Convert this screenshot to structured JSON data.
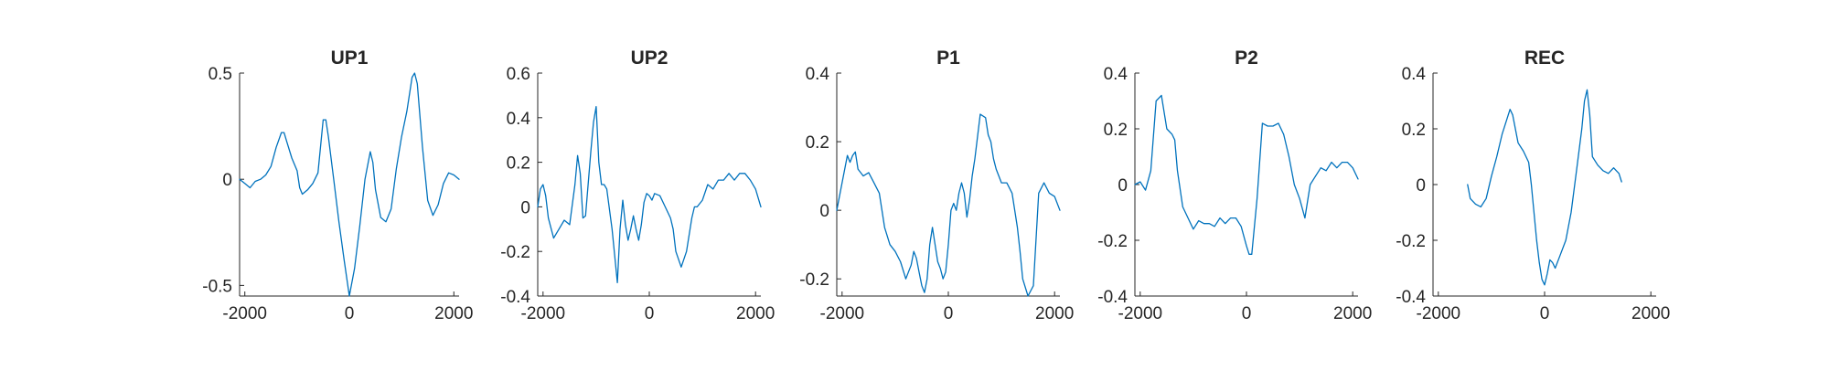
{
  "figure": {
    "background": "#ffffff",
    "line_color": "#0072BD"
  },
  "chart_data": [
    {
      "type": "line",
      "title": "UP1",
      "xlabel": "",
      "ylabel": "",
      "xlim": [
        -2100,
        2100
      ],
      "ylim": [
        -0.55,
        0.5
      ],
      "xticks": [
        -2000,
        0,
        2000
      ],
      "xticklabels": [
        "-2000",
        "0",
        "2000"
      ],
      "yticks": [
        -0.5,
        0,
        0.5
      ],
      "yticklabels": [
        "-0.5",
        "0",
        "0.5"
      ],
      "grid": false,
      "x": [
        -2100,
        -2000,
        -1900,
        -1800,
        -1700,
        -1600,
        -1500,
        -1400,
        -1300,
        -1250,
        -1200,
        -1100,
        -1000,
        -950,
        -900,
        -800,
        -700,
        -600,
        -500,
        -450,
        -400,
        -300,
        -200,
        -100,
        0,
        100,
        200,
        300,
        400,
        450,
        500,
        600,
        700,
        800,
        900,
        1000,
        1100,
        1200,
        1250,
        1300,
        1400,
        1500,
        1600,
        1700,
        1800,
        1900,
        2000,
        2100
      ],
      "series": [
        {
          "values": [
            0.0,
            -0.02,
            -0.04,
            -0.01,
            0.0,
            0.02,
            0.06,
            0.15,
            0.22,
            0.22,
            0.18,
            0.1,
            0.04,
            -0.04,
            -0.07,
            -0.05,
            -0.02,
            0.03,
            0.28,
            0.28,
            0.2,
            0.0,
            -0.2,
            -0.38,
            -0.55,
            -0.42,
            -0.22,
            0.0,
            0.13,
            0.08,
            -0.05,
            -0.18,
            -0.2,
            -0.14,
            0.05,
            0.2,
            0.32,
            0.48,
            0.5,
            0.45,
            0.15,
            -0.1,
            -0.17,
            -0.12,
            -0.02,
            0.03,
            0.02,
            0.0
          ]
        }
      ]
    },
    {
      "type": "line",
      "title": "UP2",
      "xlabel": "",
      "ylabel": "",
      "xlim": [
        -2100,
        2100
      ],
      "ylim": [
        -0.4,
        0.6
      ],
      "xticks": [
        -2000,
        0,
        2000
      ],
      "xticklabels": [
        "-2000",
        "0",
        "2000"
      ],
      "yticks": [
        -0.4,
        -0.2,
        0,
        0.2,
        0.4,
        0.6
      ],
      "yticklabels": [
        "-0.4",
        "-0.2",
        "0",
        "0.2",
        "0.4",
        "0.6"
      ],
      "grid": false,
      "x": [
        -2100,
        -2050,
        -2000,
        -1950,
        -1900,
        -1800,
        -1700,
        -1600,
        -1500,
        -1400,
        -1350,
        -1300,
        -1250,
        -1200,
        -1100,
        -1050,
        -1000,
        -950,
        -900,
        -850,
        -800,
        -700,
        -600,
        -550,
        -500,
        -450,
        -400,
        -350,
        -300,
        -250,
        -200,
        -150,
        -100,
        -50,
        0,
        50,
        100,
        200,
        300,
        400,
        450,
        500,
        600,
        700,
        800,
        850,
        900,
        1000,
        1100,
        1200,
        1300,
        1400,
        1500,
        1600,
        1700,
        1800,
        1900,
        2000,
        2100
      ],
      "series": [
        {
          "values": [
            0.0,
            0.08,
            0.1,
            0.05,
            -0.05,
            -0.14,
            -0.1,
            -0.06,
            -0.08,
            0.1,
            0.23,
            0.15,
            -0.05,
            -0.04,
            0.25,
            0.38,
            0.45,
            0.2,
            0.1,
            0.1,
            0.08,
            -0.1,
            -0.34,
            -0.1,
            0.03,
            -0.08,
            -0.15,
            -0.1,
            -0.04,
            -0.1,
            -0.15,
            -0.08,
            0.02,
            0.06,
            0.05,
            0.03,
            0.06,
            0.05,
            0.0,
            -0.05,
            -0.1,
            -0.2,
            -0.27,
            -0.2,
            -0.05,
            0.0,
            0.0,
            0.03,
            0.1,
            0.08,
            0.12,
            0.12,
            0.15,
            0.12,
            0.15,
            0.15,
            0.12,
            0.08,
            0.0
          ]
        }
      ]
    },
    {
      "type": "line",
      "title": "P1",
      "xlabel": "",
      "ylabel": "",
      "xlim": [
        -2100,
        2100
      ],
      "ylim": [
        -0.25,
        0.4
      ],
      "xticks": [
        -2000,
        0,
        2000
      ],
      "xticklabels": [
        "-2000",
        "0",
        "2000"
      ],
      "yticks": [
        -0.2,
        0,
        0.2,
        0.4
      ],
      "yticklabels": [
        "-0.2",
        "0",
        "0.2",
        "0.4"
      ],
      "grid": false,
      "x": [
        -2100,
        -2000,
        -1950,
        -1900,
        -1850,
        -1800,
        -1750,
        -1700,
        -1600,
        -1500,
        -1400,
        -1300,
        -1200,
        -1100,
        -1000,
        -900,
        -800,
        -700,
        -650,
        -600,
        -550,
        -500,
        -450,
        -400,
        -350,
        -300,
        -250,
        -200,
        -150,
        -100,
        -50,
        0,
        50,
        100,
        150,
        200,
        250,
        300,
        350,
        400,
        450,
        500,
        600,
        700,
        750,
        800,
        850,
        900,
        1000,
        1100,
        1200,
        1300,
        1350,
        1400,
        1500,
        1600,
        1700,
        1800,
        1900,
        2000,
        2100
      ],
      "series": [
        {
          "values": [
            0.0,
            0.08,
            0.12,
            0.16,
            0.14,
            0.16,
            0.17,
            0.12,
            0.1,
            0.11,
            0.08,
            0.05,
            -0.05,
            -0.1,
            -0.12,
            -0.15,
            -0.2,
            -0.16,
            -0.12,
            -0.14,
            -0.18,
            -0.22,
            -0.24,
            -0.2,
            -0.1,
            -0.05,
            -0.1,
            -0.15,
            -0.17,
            -0.2,
            -0.18,
            -0.1,
            0.0,
            0.02,
            0.0,
            0.05,
            0.08,
            0.05,
            -0.02,
            0.03,
            0.1,
            0.15,
            0.28,
            0.27,
            0.22,
            0.2,
            0.15,
            0.12,
            0.08,
            0.08,
            0.05,
            -0.05,
            -0.12,
            -0.2,
            -0.25,
            -0.22,
            0.05,
            0.08,
            0.05,
            0.04,
            0.0
          ]
        }
      ]
    },
    {
      "type": "line",
      "title": "P2",
      "xlabel": "",
      "ylabel": "",
      "xlim": [
        -2100,
        2100
      ],
      "ylim": [
        -0.4,
        0.4
      ],
      "xticks": [
        -2000,
        0,
        2000
      ],
      "xticklabels": [
        "-2000",
        "0",
        "2000"
      ],
      "yticks": [
        -0.4,
        -0.2,
        0,
        0.2,
        0.4
      ],
      "yticklabels": [
        "-0.4",
        "-0.2",
        "0",
        "0.2",
        "0.4"
      ],
      "grid": false,
      "x": [
        -2100,
        -2000,
        -1900,
        -1800,
        -1700,
        -1600,
        -1500,
        -1400,
        -1350,
        -1300,
        -1200,
        -1100,
        -1000,
        -900,
        -800,
        -700,
        -600,
        -500,
        -400,
        -300,
        -200,
        -100,
        0,
        50,
        100,
        200,
        300,
        400,
        500,
        600,
        700,
        800,
        900,
        1000,
        1100,
        1200,
        1300,
        1400,
        1500,
        1600,
        1700,
        1800,
        1900,
        2000,
        2100
      ],
      "series": [
        {
          "values": [
            0.0,
            0.01,
            -0.02,
            0.05,
            0.3,
            0.32,
            0.2,
            0.18,
            0.16,
            0.05,
            -0.08,
            -0.12,
            -0.16,
            -0.13,
            -0.14,
            -0.14,
            -0.15,
            -0.12,
            -0.14,
            -0.12,
            -0.12,
            -0.15,
            -0.22,
            -0.25,
            -0.25,
            -0.05,
            0.22,
            0.21,
            0.21,
            0.22,
            0.18,
            0.1,
            0.0,
            -0.05,
            -0.12,
            0.0,
            0.03,
            0.06,
            0.05,
            0.08,
            0.06,
            0.08,
            0.08,
            0.06,
            0.02
          ]
        }
      ]
    },
    {
      "type": "line",
      "title": "REC",
      "xlabel": "",
      "ylabel": "",
      "xlim": [
        -2100,
        2100
      ],
      "ylim": [
        -0.4,
        0.4
      ],
      "xticks": [
        -2000,
        0,
        2000
      ],
      "xticklabels": [
        "-2000",
        "0",
        "2000"
      ],
      "yticks": [
        -0.4,
        -0.2,
        0,
        0.2,
        0.4
      ],
      "yticklabels": [
        "-0.4",
        "-0.2",
        "0",
        "0.2",
        "0.4"
      ],
      "grid": false,
      "x": [
        -1450,
        -1400,
        -1300,
        -1200,
        -1100,
        -1000,
        -900,
        -800,
        -700,
        -650,
        -600,
        -500,
        -400,
        -300,
        -250,
        -200,
        -150,
        -100,
        -50,
        0,
        50,
        100,
        150,
        200,
        300,
        400,
        500,
        600,
        700,
        750,
        800,
        850,
        900,
        1000,
        1100,
        1200,
        1300,
        1350,
        1400,
        1450
      ],
      "series": [
        {
          "values": [
            0.0,
            -0.05,
            -0.07,
            -0.08,
            -0.05,
            0.03,
            0.1,
            0.18,
            0.24,
            0.27,
            0.25,
            0.15,
            0.12,
            0.08,
            0.0,
            -0.1,
            -0.2,
            -0.28,
            -0.34,
            -0.36,
            -0.32,
            -0.27,
            -0.28,
            -0.3,
            -0.25,
            -0.2,
            -0.1,
            0.05,
            0.2,
            0.3,
            0.34,
            0.25,
            0.1,
            0.07,
            0.05,
            0.04,
            0.06,
            0.05,
            0.04,
            0.01
          ]
        }
      ]
    }
  ]
}
